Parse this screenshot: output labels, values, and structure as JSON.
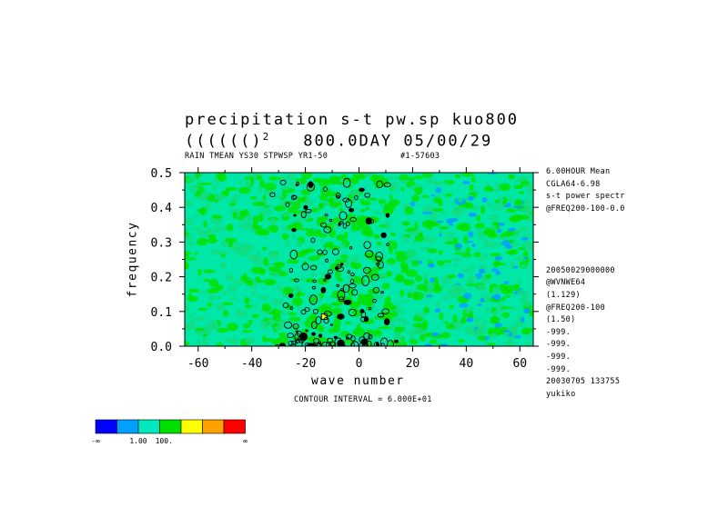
{
  "chart_data": {
    "type": "heatmap",
    "title_line1": "precipitation s-t pw.sp kuo800",
    "title_line2_prefix": "(((((()",
    "title_line2_sup": "2",
    "title_line2_suffix": "800.0DAY 05/00/29",
    "subtitle_left": "RAIN TMEAN YS30 STPWSP YR1-50",
    "subtitle_right": "#1-57603",
    "xlabel": "wave number",
    "ylabel": "frequency",
    "xlim": [
      -65,
      65
    ],
    "ylim": [
      0,
      0.5
    ],
    "x_ticks": [
      -60,
      -40,
      -20,
      0,
      20,
      40,
      60
    ],
    "x_tick_labels": [
      "-60",
      "-40",
      "-20",
      "0",
      "20",
      "40",
      "60"
    ],
    "y_ticks": [
      0.0,
      0.1,
      0.2,
      0.3,
      0.4,
      0.5
    ],
    "y_tick_labels": [
      "0.0",
      "0.1",
      "0.2",
      "0.3",
      "0.4",
      "0.5"
    ],
    "contour_interval_text": "CONTOUR INTERVAL = 6.000E+01",
    "dominant_level": "cyan-green background with green patches concentrated near wave numbers -35 to 20, low frequencies",
    "colorbar": {
      "colors": [
        "#0000ff",
        "#00a0ff",
        "#00e8c0",
        "#00e000",
        "#ffff00",
        "#ffa000",
        "#ff0000"
      ],
      "labels": [
        "-∞",
        "1.00",
        "100.",
        "∞"
      ]
    },
    "info_lines": [
      "6.00HOUR Mean",
      "CGLA64-6.98",
      "s-t power spectr",
      "@FREQ200-100-0.0",
      "",
      "",
      "",
      "",
      "20050029000000",
      "@WVNWE64",
      "(1.129)",
      "@FREQ200-100",
      "(1.50)",
      "-999.",
      "-999.",
      "-999.",
      "-999.",
      "20030705 133755",
      "yukiko"
    ]
  }
}
